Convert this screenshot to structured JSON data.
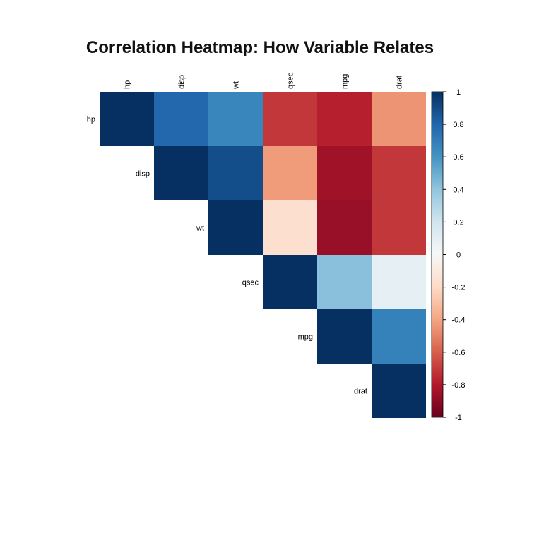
{
  "chart_data": {
    "type": "heatmap",
    "title": "Correlation Heatmap: How Variable Relates",
    "layout": "upper-triangle",
    "variables": [
      "hp",
      "disp",
      "wt",
      "qsec",
      "mpg",
      "drat"
    ],
    "matrix": [
      [
        1.0,
        0.79,
        0.66,
        -0.71,
        -0.78,
        -0.45
      ],
      [
        0.79,
        1.0,
        0.89,
        -0.43,
        -0.85,
        -0.71
      ],
      [
        0.66,
        0.89,
        1.0,
        -0.17,
        -0.87,
        -0.71
      ],
      [
        -0.71,
        -0.43,
        -0.17,
        1.0,
        0.42,
        0.09
      ],
      [
        -0.78,
        -0.85,
        -0.87,
        0.42,
        1.0,
        0.68
      ],
      [
        -0.45,
        -0.71,
        -0.71,
        0.09,
        0.68,
        1.0
      ]
    ],
    "colorbar": {
      "range": [
        -1,
        1
      ],
      "ticks": [
        "1",
        "0.8",
        "0.6",
        "0.4",
        "0.2",
        "0",
        "-0.2",
        "-0.4",
        "-0.6",
        "-0.8",
        "-1"
      ]
    },
    "colormap": "RdBu",
    "colors": {
      "neg_end": "#67001f",
      "pos_end": "#053061",
      "mid": "#f7f7f7"
    }
  }
}
